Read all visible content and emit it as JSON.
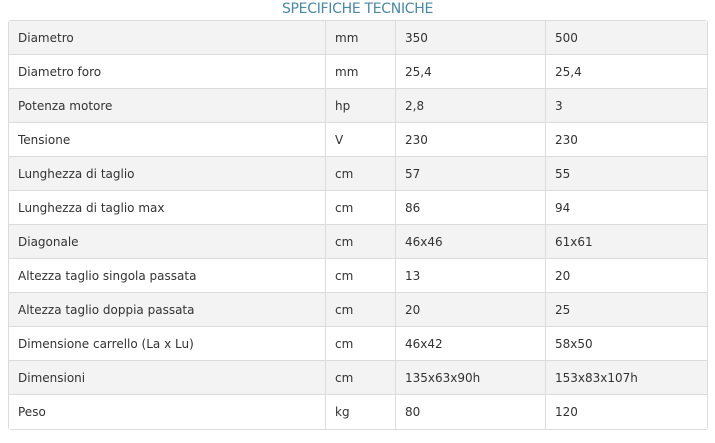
{
  "title": "SPECIFICHE TECNICHE",
  "rows": [
    [
      "Diametro",
      "mm",
      "350",
      "500"
    ],
    [
      "Diametro foro",
      "mm",
      "25,4",
      "25,4"
    ],
    [
      "Potenza motore",
      "hp",
      "2,8",
      "3"
    ],
    [
      "Tensione",
      "V",
      "230",
      "230"
    ],
    [
      "Lunghezza di taglio",
      "cm",
      "57",
      "55"
    ],
    [
      "Lunghezza di taglio max",
      "cm",
      "86",
      "94"
    ],
    [
      "Diagonale",
      "cm",
      "46x46",
      "61x61"
    ],
    [
      "Altezza taglio singola passata",
      "cm",
      "13",
      "20"
    ],
    [
      "Altezza taglio doppia passata",
      "cm",
      "20",
      "25"
    ],
    [
      "Dimensione carrello (La x Lu)",
      "cm",
      "46x42",
      "58x50"
    ],
    [
      "Dimensioni",
      "cm",
      "135x63x90h",
      "153x83x107h"
    ],
    [
      "Peso",
      "kg",
      "80",
      "120"
    ]
  ]
}
